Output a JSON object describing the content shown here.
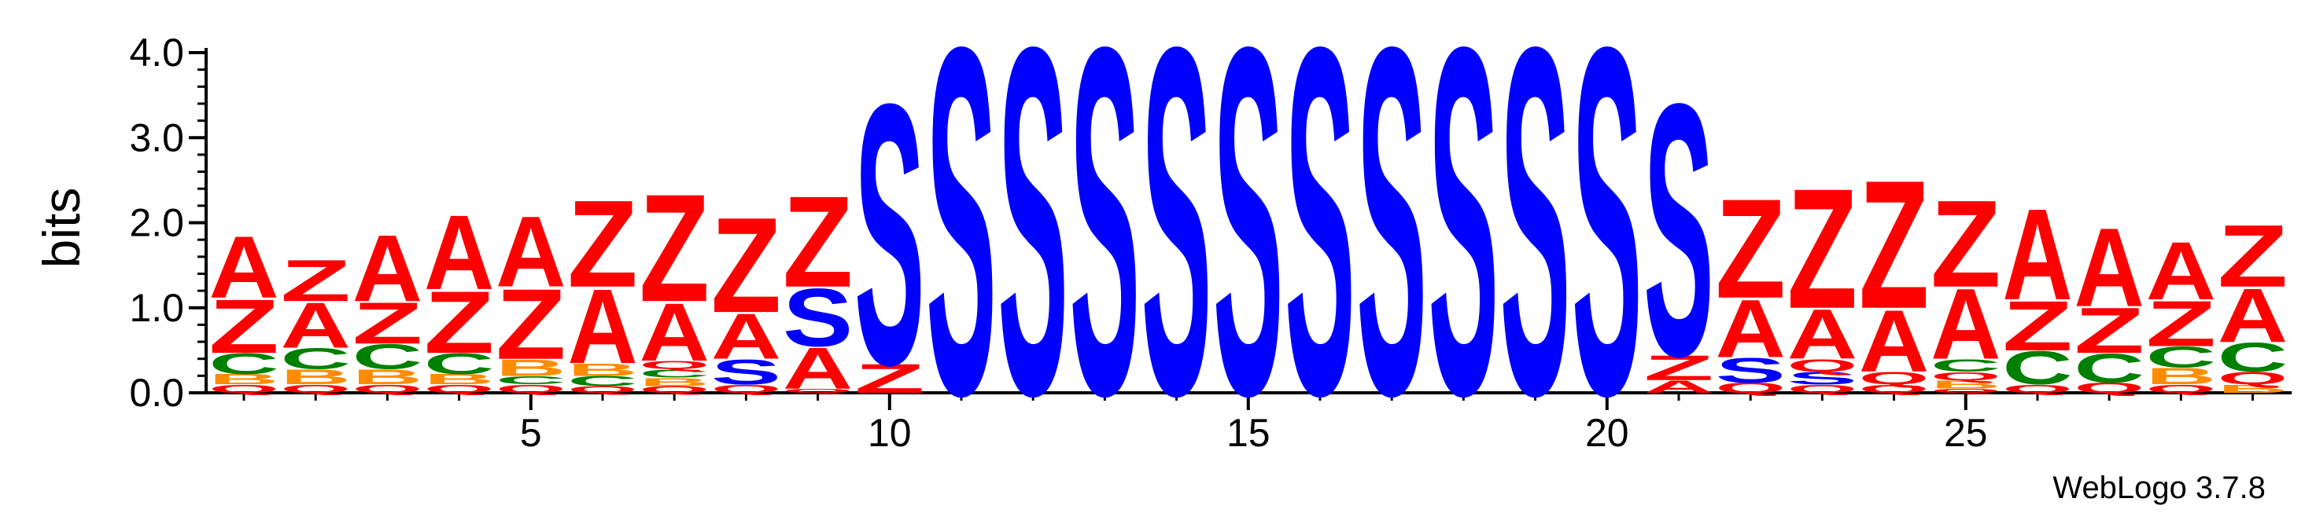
{
  "chart_data": {
    "type": "sequence-logo",
    "ylabel": "bits",
    "ylim": [
      0,
      4.0
    ],
    "y_ticks": [
      "0.0",
      "1.0",
      "2.0",
      "3.0",
      "4.0"
    ],
    "x_ticks": [
      "5",
      "10",
      "15",
      "20",
      "25"
    ],
    "x_tick_positions": [
      5,
      10,
      15,
      20,
      25
    ],
    "x_range": [
      1,
      29
    ],
    "credit": "WebLogo 3.7.8",
    "colors": {
      "A": "#ff0000",
      "Z": "#ff0000",
      "S": "#0000ff",
      "C": "#008000",
      "B": "#ff8c00",
      "Q": "#ff0000"
    },
    "positions": [
      {
        "pos": 1,
        "letters": [
          {
            "l": "Q",
            "h": 0.1
          },
          {
            "l": "B",
            "h": 0.12
          },
          {
            "l": "C",
            "h": 0.25
          },
          {
            "l": "Z",
            "h": 0.65
          },
          {
            "l": "A",
            "h": 0.75
          }
        ]
      },
      {
        "pos": 2,
        "letters": [
          {
            "l": "Q",
            "h": 0.1
          },
          {
            "l": "B",
            "h": 0.18
          },
          {
            "l": "C",
            "h": 0.25
          },
          {
            "l": "A",
            "h": 0.55
          },
          {
            "l": "Z",
            "h": 0.5
          }
        ]
      },
      {
        "pos": 3,
        "letters": [
          {
            "l": "Q",
            "h": 0.1
          },
          {
            "l": "B",
            "h": 0.18
          },
          {
            "l": "C",
            "h": 0.3
          },
          {
            "l": "Z",
            "h": 0.5
          },
          {
            "l": "A",
            "h": 0.8
          }
        ]
      },
      {
        "pos": 4,
        "letters": [
          {
            "l": "Q",
            "h": 0.1
          },
          {
            "l": "B",
            "h": 0.12
          },
          {
            "l": "C",
            "h": 0.25
          },
          {
            "l": "Z",
            "h": 0.75
          },
          {
            "l": "A",
            "h": 0.9
          }
        ]
      },
      {
        "pos": 5,
        "letters": [
          {
            "l": "Q",
            "h": 0.1
          },
          {
            "l": "C",
            "h": 0.1
          },
          {
            "l": "B",
            "h": 0.2
          },
          {
            "l": "Z",
            "h": 0.85
          },
          {
            "l": "A",
            "h": 0.85
          }
        ]
      },
      {
        "pos": 6,
        "letters": [
          {
            "l": "Q",
            "h": 0.08
          },
          {
            "l": "C",
            "h": 0.12
          },
          {
            "l": "B",
            "h": 0.15
          },
          {
            "l": "A",
            "h": 0.9
          },
          {
            "l": "Z",
            "h": 1.05
          }
        ]
      },
      {
        "pos": 7,
        "letters": [
          {
            "l": "Q",
            "h": 0.08
          },
          {
            "l": "B",
            "h": 0.1
          },
          {
            "l": "C",
            "h": 0.1
          },
          {
            "l": "Q",
            "h": 0.1
          },
          {
            "l": "A",
            "h": 0.7
          },
          {
            "l": "Z",
            "h": 1.3
          }
        ]
      },
      {
        "pos": 8,
        "letters": [
          {
            "l": "Q",
            "h": 0.1
          },
          {
            "l": "S",
            "h": 0.3
          },
          {
            "l": "A",
            "h": 0.55
          },
          {
            "l": "Z",
            "h": 1.15
          }
        ]
      },
      {
        "pos": 9,
        "letters": [
          {
            "l": "Q",
            "h": 0.05
          },
          {
            "l": "A",
            "h": 0.5
          },
          {
            "l": "S",
            "h": 0.7
          },
          {
            "l": "Z",
            "h": 1.1
          }
        ]
      },
      {
        "pos": 10,
        "letters": [
          {
            "l": "Z",
            "h": 0.35
          },
          {
            "l": "S",
            "h": 3.15
          }
        ]
      },
      {
        "pos": 11,
        "letters": [
          {
            "l": "S",
            "h": 4.2
          }
        ]
      },
      {
        "pos": 12,
        "letters": [
          {
            "l": "S",
            "h": 4.2
          }
        ]
      },
      {
        "pos": 13,
        "letters": [
          {
            "l": "S",
            "h": 4.2
          }
        ]
      },
      {
        "pos": 14,
        "letters": [
          {
            "l": "S",
            "h": 4.2
          }
        ]
      },
      {
        "pos": 15,
        "letters": [
          {
            "l": "S",
            "h": 4.2
          }
        ]
      },
      {
        "pos": 16,
        "letters": [
          {
            "l": "S",
            "h": 4.2
          }
        ]
      },
      {
        "pos": 17,
        "letters": [
          {
            "l": "S",
            "h": 4.2
          }
        ]
      },
      {
        "pos": 18,
        "letters": [
          {
            "l": "S",
            "h": 4.2
          }
        ]
      },
      {
        "pos": 19,
        "letters": [
          {
            "l": "S",
            "h": 4.2
          }
        ]
      },
      {
        "pos": 20,
        "letters": [
          {
            "l": "S",
            "h": 4.2
          }
        ]
      },
      {
        "pos": 21,
        "letters": [
          {
            "l": "A",
            "h": 0.15
          },
          {
            "l": "Z",
            "h": 0.3
          },
          {
            "l": "S",
            "h": 3.05
          }
        ]
      },
      {
        "pos": 22,
        "letters": [
          {
            "l": "Q",
            "h": 0.12
          },
          {
            "l": "S",
            "h": 0.3
          },
          {
            "l": "A",
            "h": 0.7
          },
          {
            "l": "Z",
            "h": 1.2
          }
        ]
      },
      {
        "pos": 23,
        "letters": [
          {
            "l": "Q",
            "h": 0.1
          },
          {
            "l": "S",
            "h": 0.15
          },
          {
            "l": "Q",
            "h": 0.15
          },
          {
            "l": "A",
            "h": 0.6
          },
          {
            "l": "Z",
            "h": 1.45
          }
        ]
      },
      {
        "pos": 24,
        "letters": [
          {
            "l": "Q",
            "h": 0.1
          },
          {
            "l": "Q",
            "h": 0.15
          },
          {
            "l": "A",
            "h": 0.75
          },
          {
            "l": "Z",
            "h": 1.55
          }
        ]
      },
      {
        "pos": 25,
        "letters": [
          {
            "l": "Q",
            "h": 0.05
          },
          {
            "l": "B",
            "h": 0.1
          },
          {
            "l": "Q",
            "h": 0.1
          },
          {
            "l": "C",
            "h": 0.15
          },
          {
            "l": "A",
            "h": 0.85
          },
          {
            "l": "Z",
            "h": 1.05
          }
        ]
      },
      {
        "pos": 26,
        "letters": [
          {
            "l": "Q",
            "h": 0.1
          },
          {
            "l": "C",
            "h": 0.4
          },
          {
            "l": "Z",
            "h": 0.6
          },
          {
            "l": "A",
            "h": 1.1
          }
        ]
      },
      {
        "pos": 27,
        "letters": [
          {
            "l": "Q",
            "h": 0.12
          },
          {
            "l": "C",
            "h": 0.35
          },
          {
            "l": "Z",
            "h": 0.55
          },
          {
            "l": "A",
            "h": 0.95
          }
        ]
      },
      {
        "pos": 28,
        "letters": [
          {
            "l": "Q",
            "h": 0.1
          },
          {
            "l": "B",
            "h": 0.2
          },
          {
            "l": "C",
            "h": 0.25
          },
          {
            "l": "Z",
            "h": 0.55
          },
          {
            "l": "A",
            "h": 0.7
          }
        ]
      },
      {
        "pos": 29,
        "letters": [
          {
            "l": "B",
            "h": 0.1
          },
          {
            "l": "Q",
            "h": 0.15
          },
          {
            "l": "C",
            "h": 0.35
          },
          {
            "l": "A",
            "h": 0.65
          },
          {
            "l": "Z",
            "h": 0.75
          }
        ]
      }
    ]
  }
}
